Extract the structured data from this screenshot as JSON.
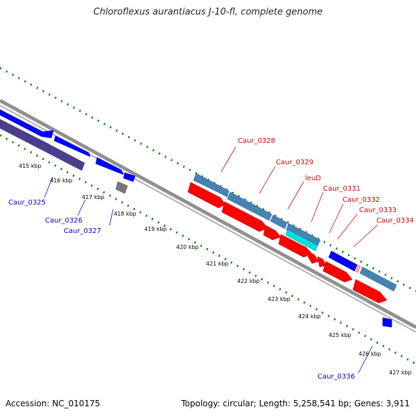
{
  "title": "Chloroflexus aurantiacus J-10-fl, complete genome",
  "footer": {
    "accession": "Accession: NC_010175",
    "summary": "Topology: circular; Length: 5,258,541 bp; Genes: 3,911"
  },
  "ticks": [
    "415 kbp",
    "416 kbp",
    "417 kbp",
    "418 kbp",
    "419 kbp",
    "420 kbp",
    "421 kbp",
    "422 kbp",
    "423 kbp",
    "424 kbp",
    "425 kbp",
    "426 kbp",
    "427 kbp"
  ],
  "labels": [
    {
      "text": "Caur_0325",
      "color": "#0000cc"
    },
    {
      "text": "Caur_0326",
      "color": "#0000cc"
    },
    {
      "text": "Caur_0327",
      "color": "#0000cc"
    },
    {
      "text": "Caur_0328",
      "color": "#cc0000"
    },
    {
      "text": "Caur_0329",
      "color": "#cc0000"
    },
    {
      "text": "leuD",
      "color": "#cc0000"
    },
    {
      "text": "Caur_0331",
      "color": "#cc0000"
    },
    {
      "text": "Caur_0332",
      "color": "#cc0000"
    },
    {
      "text": "Caur_0333",
      "color": "#cc0000"
    },
    {
      "text": "Caur_0334",
      "color": "#cc0000"
    },
    {
      "text": "Caur_0336",
      "color": "#0000cc"
    }
  ],
  "colors": {
    "forward_gene": "#ff0000",
    "reverse_gene": "#0000ff",
    "forward_cds": "#4682b4",
    "reverse_cds": "#4b3f8c",
    "backbone": "#909090",
    "tick_dots": "#008000"
  }
}
